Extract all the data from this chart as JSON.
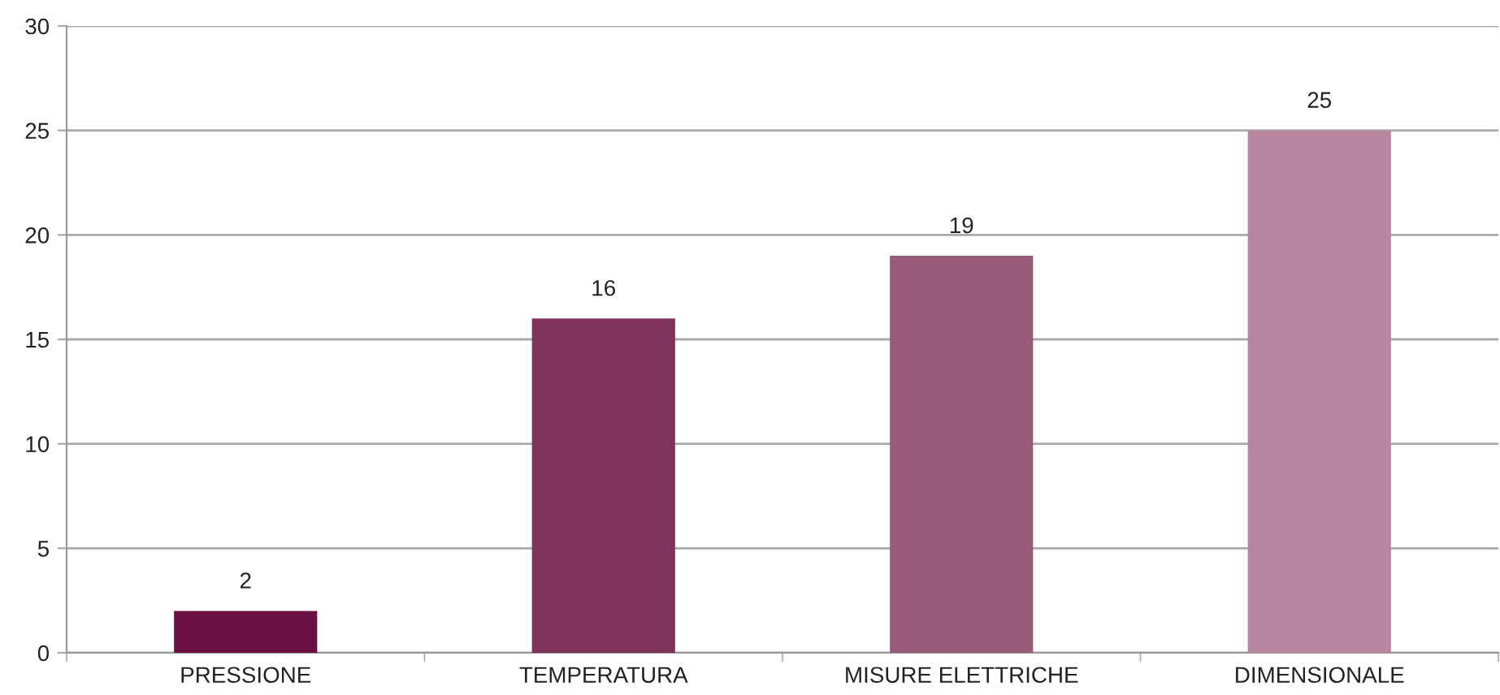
{
  "chart_data": {
    "type": "bar",
    "categories": [
      "PRESSIONE",
      "TEMPERATURA",
      "MISURE ELETTRICHE",
      "DIMENSIONALE"
    ],
    "values": [
      2,
      16,
      19,
      25
    ],
    "colors": [
      "#6b1043",
      "#7f325a",
      "#985c78",
      "#b8879f"
    ],
    "ylim": [
      0,
      30
    ],
    "yticks": [
      0,
      5,
      10,
      15,
      20,
      25,
      30
    ],
    "grid": "y",
    "legend": false,
    "data_labels": true
  }
}
